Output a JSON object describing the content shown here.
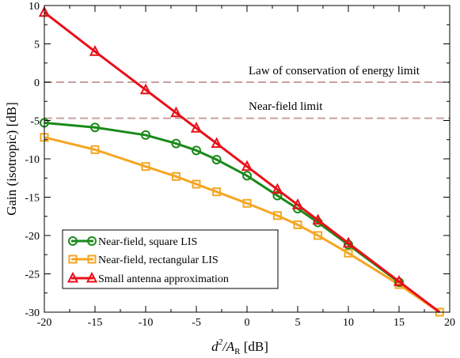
{
  "chart_data": {
    "type": "line",
    "xlabel": {
      "main": "d",
      "sup": "2",
      "mid": "/A",
      "sub": "R",
      "unit": " [dB]"
    },
    "ylabel": "Gain (isotropic) [dB]",
    "xlim": [
      -20,
      20
    ],
    "ylim": [
      -30,
      10
    ],
    "xticks": [
      -20,
      -15,
      -10,
      -5,
      0,
      5,
      10,
      15,
      20
    ],
    "yticks": [
      -30,
      -25,
      -20,
      -15,
      -10,
      -5,
      0,
      5,
      10
    ],
    "legend_position": "bottom-left",
    "reference_lines": [
      {
        "label": "Law of conservation of energy limit",
        "y": 0,
        "color": "#c9a0a0",
        "style": "dashed"
      },
      {
        "label": "Near-field limit",
        "y": -4.7,
        "color": "#c9a0a0",
        "style": "dashed"
      }
    ],
    "series": [
      {
        "name": "Near-field, square LIS",
        "color": "#1a8a1a",
        "marker": "circle",
        "x": [
          -20,
          -15,
          -10,
          -7,
          -5,
          -3,
          0,
          3,
          5,
          7,
          10,
          15
        ],
        "y": [
          -5.3,
          -5.9,
          -6.9,
          -8.0,
          -8.9,
          -10.1,
          -12.2,
          -14.8,
          -16.5,
          -18.3,
          -21.2,
          -26.1
        ]
      },
      {
        "name": "Near-field, rectangular LIS",
        "color": "#f5a623",
        "marker": "square",
        "x": [
          -20,
          -15,
          -10,
          -7,
          -5,
          -3,
          0,
          3,
          5,
          7,
          10,
          15,
          19
        ],
        "y": [
          -7.2,
          -8.8,
          -11.0,
          -12.3,
          -13.3,
          -14.3,
          -15.8,
          -17.4,
          -18.6,
          -20.0,
          -22.3,
          -26.4,
          -30.0
        ]
      },
      {
        "name": "Small antenna approximation",
        "color": "#e8101a",
        "marker": "triangle",
        "x": [
          -20,
          -15,
          -10,
          -7,
          -5,
          -3,
          0,
          3,
          5,
          7,
          10,
          15,
          19
        ],
        "y": [
          9.1,
          4.0,
          -1.0,
          -4.0,
          -6.0,
          -8.0,
          -11.0,
          -14.0,
          -16.0,
          -18.0,
          -21.0,
          -26.0,
          -30.0
        ],
        "marker_count": 12
      }
    ]
  }
}
